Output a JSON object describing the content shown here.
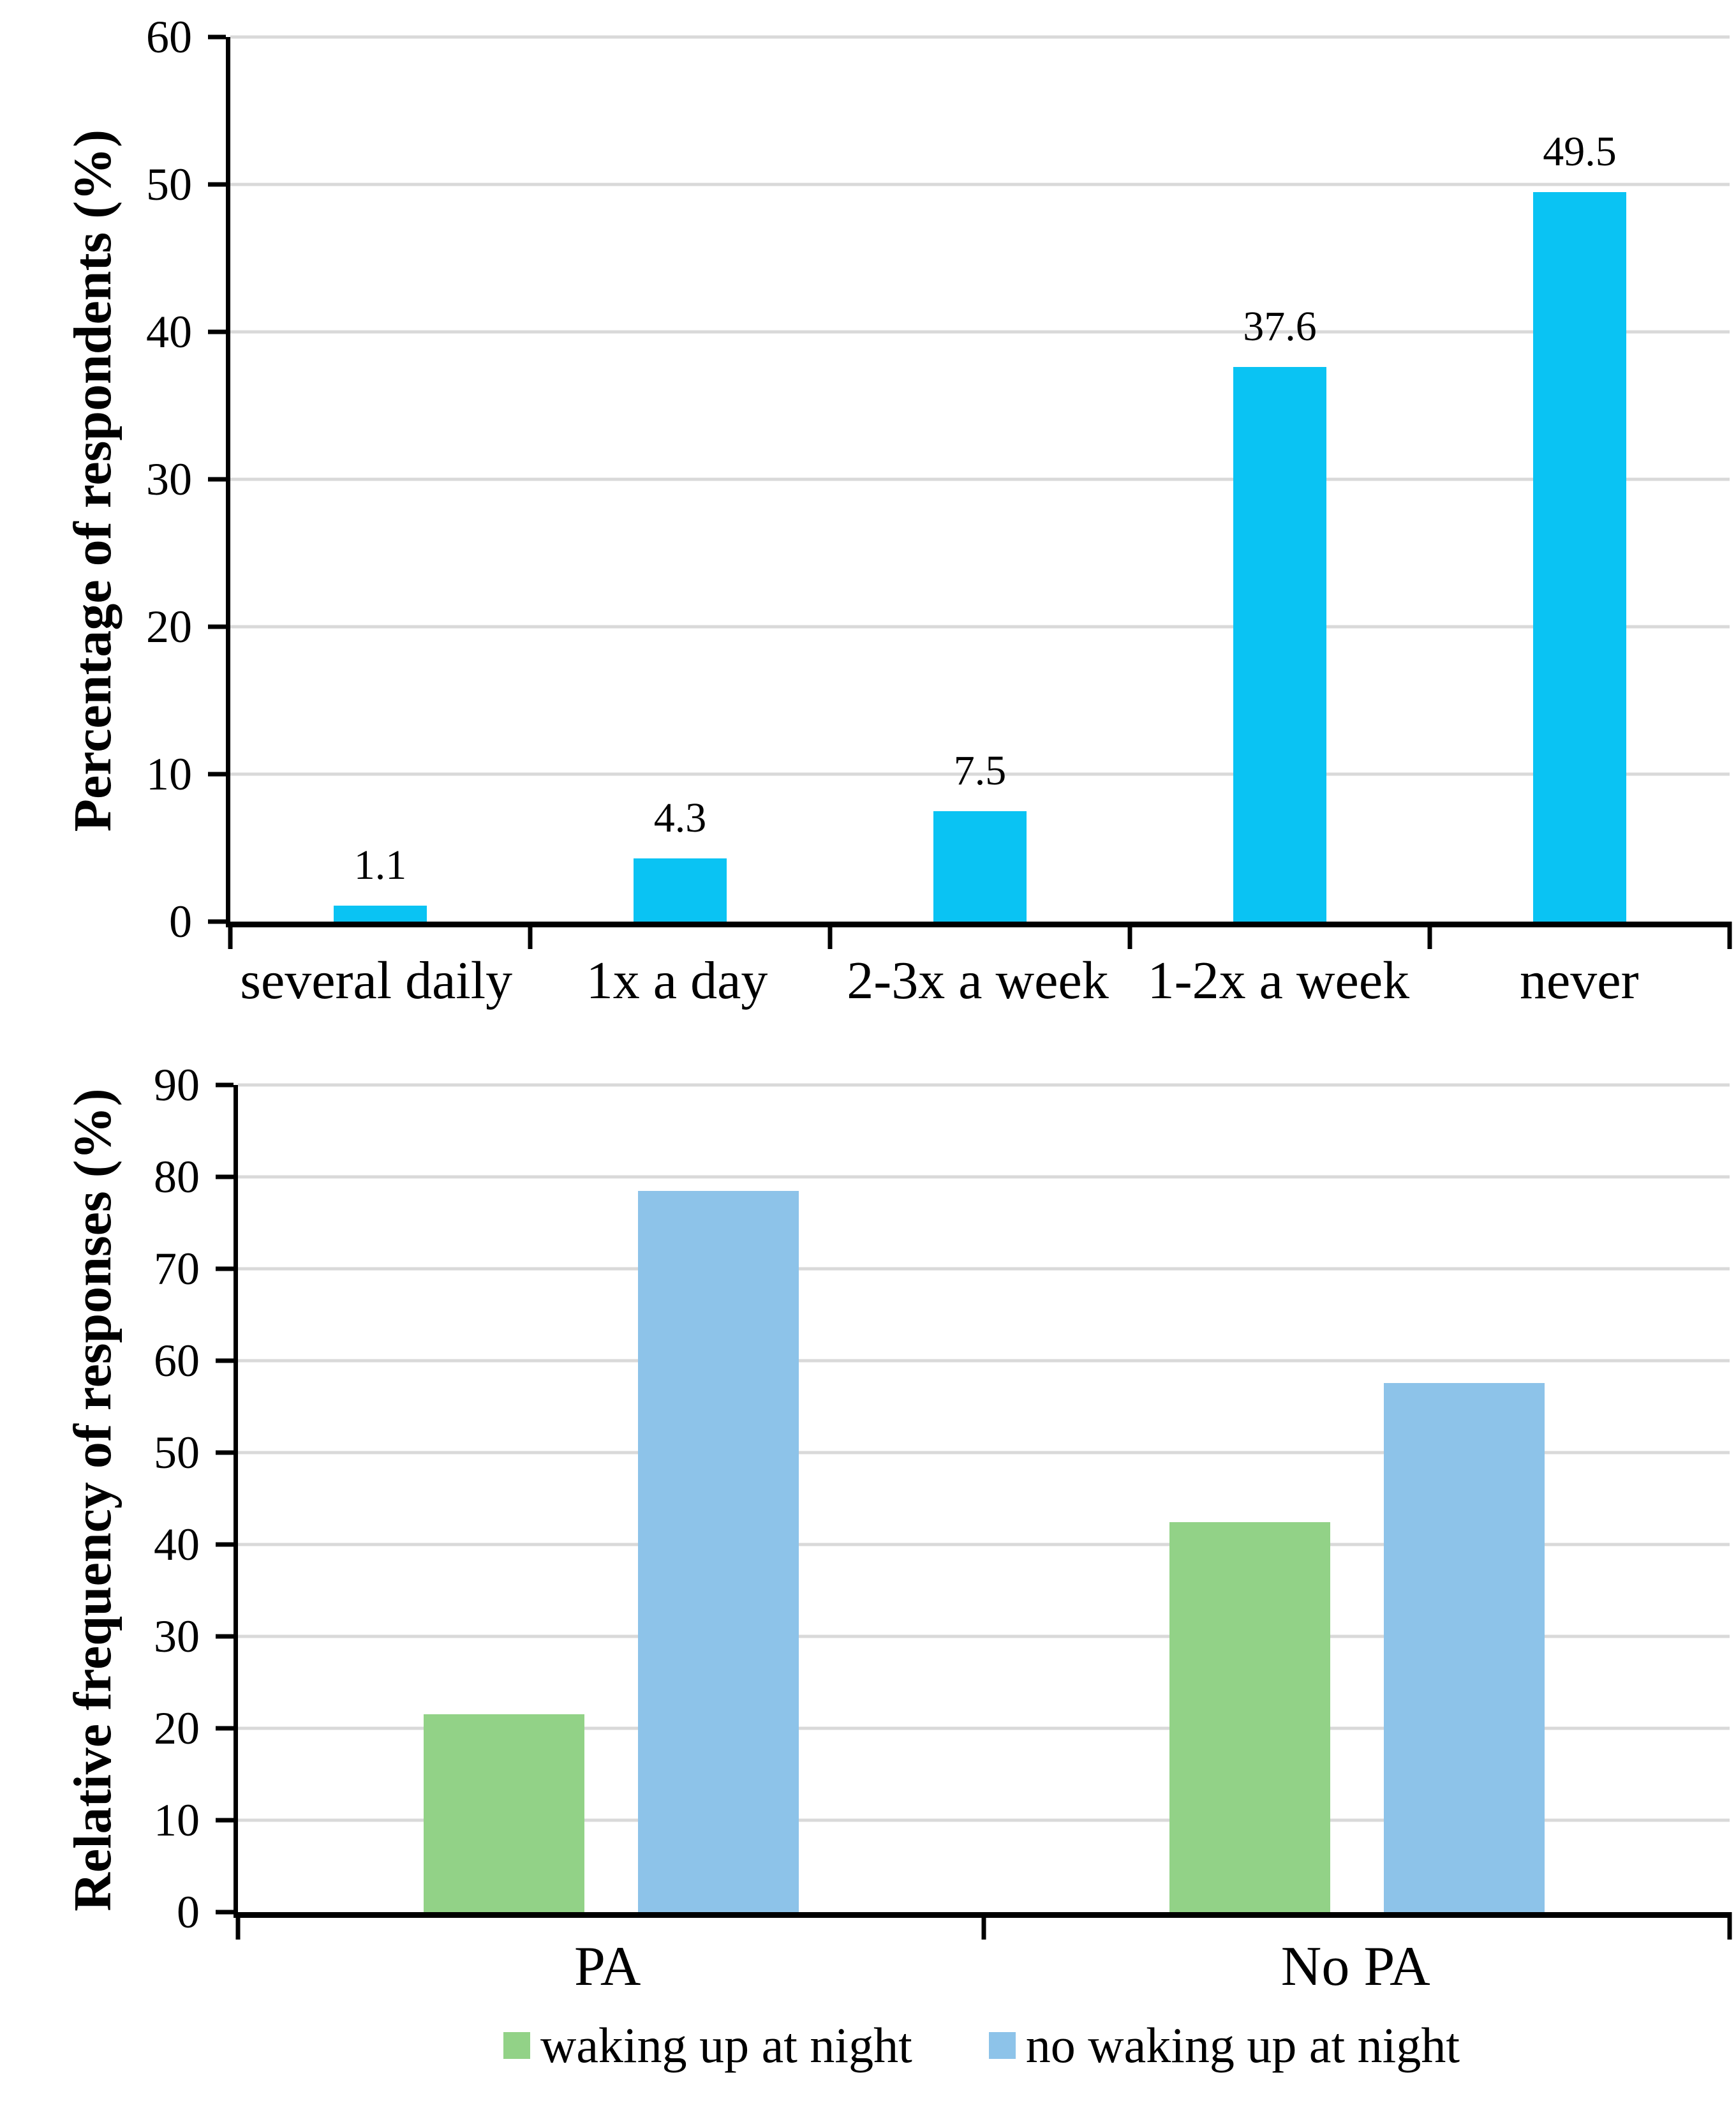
{
  "figure": {
    "background": "#ffffff"
  },
  "colors": {
    "gridline": "#D9D9D9",
    "axis": "#000000",
    "text": "#000000"
  },
  "chart_data": [
    {
      "type": "bar",
      "title": "",
      "xlabel": "",
      "ylabel": "Percentage of respondents (%)",
      "ylim": [
        0,
        60
      ],
      "ytick_step": 10,
      "yticks": [
        0,
        10,
        20,
        30,
        40,
        50,
        60
      ],
      "grid": true,
      "legend_position": "none",
      "bar_color": "#0AC3F3",
      "categories": [
        "several daily",
        "1x a day",
        "2-3x a week",
        "1-2x a week",
        "never"
      ],
      "values": [
        1.1,
        4.3,
        7.5,
        37.6,
        49.5
      ],
      "data_labels": [
        "1.1",
        "4.3",
        "7.5",
        "37.6",
        "49.5"
      ]
    },
    {
      "type": "grouped-bar",
      "title": "",
      "xlabel": "",
      "ylabel": "Relative frequency of responses (%)",
      "ylim": [
        0,
        90
      ],
      "ytick_step": 10,
      "yticks": [
        0,
        10,
        20,
        30,
        40,
        50,
        60,
        70,
        80,
        90
      ],
      "grid": true,
      "legend_position": "bottom",
      "categories": [
        "PA",
        "No PA"
      ],
      "series": [
        {
          "name": "waking up at night",
          "color": "#92D287",
          "values": [
            21.5,
            42.4
          ]
        },
        {
          "name": "no waking up at night",
          "color": "#8DC3E9",
          "values": [
            78.5,
            57.6
          ]
        }
      ]
    }
  ]
}
